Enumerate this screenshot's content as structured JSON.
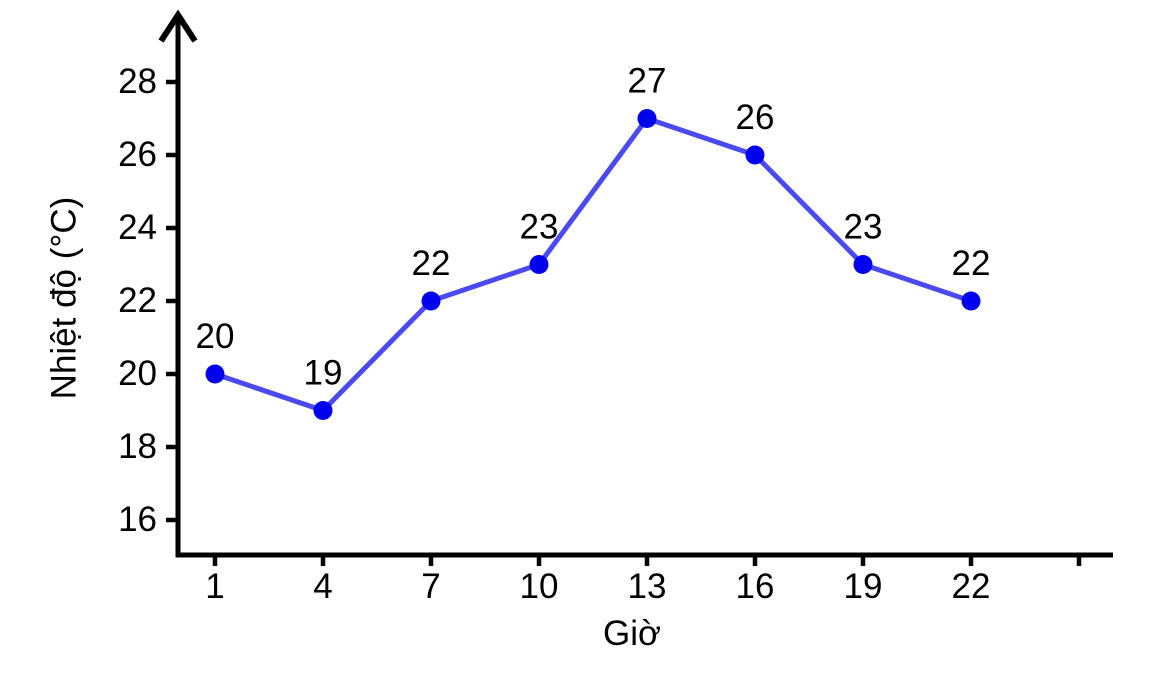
{
  "chart_data": {
    "type": "line",
    "x": [
      1,
      4,
      7,
      10,
      13,
      16,
      19,
      22
    ],
    "values": [
      20,
      19,
      22,
      23,
      27,
      26,
      23,
      22
    ],
    "point_labels": [
      "20",
      "19",
      "22",
      "23",
      "27",
      "26",
      "23",
      "22"
    ],
    "title": "",
    "xlabel": "Giờ",
    "ylabel": "Nhiệt độ (°C)",
    "x_ticks": [
      1,
      4,
      7,
      10,
      13,
      16,
      19,
      22
    ],
    "x_ticks_unlabeled": [
      25
    ],
    "y_ticks": [
      16,
      18,
      20,
      22,
      24,
      26,
      28
    ],
    "xlim": [
      0,
      27
    ],
    "ylim": [
      15,
      29.5
    ],
    "grid": false,
    "legend": "none",
    "line_color": "#4b4af1",
    "marker_color": "#0101ee",
    "axis_color": "#000000",
    "text_color": "#000000",
    "y_axis_arrow": true,
    "x_axis_arrow": false
  }
}
